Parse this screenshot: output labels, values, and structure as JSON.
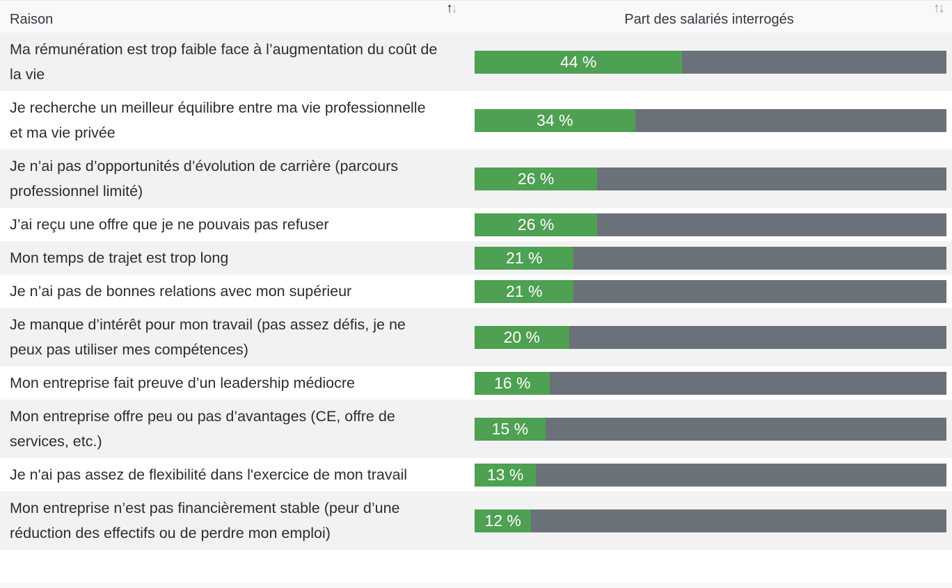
{
  "table": {
    "columns": [
      {
        "label": "Raison",
        "sort_state": "ascending-active"
      },
      {
        "label": "Part des salariés interrogés",
        "sort_state": "inactive"
      }
    ],
    "rows": [
      {
        "label": "Ma rémunération est trop faible face à l’augmentation du coût de la vie",
        "value": 44,
        "display": "44 %"
      },
      {
        "label": "Je recherche un meilleur équilibre entre ma vie professionnelle et ma vie privée",
        "value": 34,
        "display": "34 %"
      },
      {
        "label": "Je n’ai pas d’opportunités d’évolution de carrière (parcours professionnel limité)",
        "value": 26,
        "display": "26 %"
      },
      {
        "label": "J’ai reçu une offre que je ne pouvais pas refuser",
        "value": 26,
        "display": "26 %"
      },
      {
        "label": "Mon temps de trajet est trop long",
        "value": 21,
        "display": "21 %"
      },
      {
        "label": "Je n’ai pas de bonnes relations avec mon supérieur",
        "value": 21,
        "display": "21 %"
      },
      {
        "label": "Je manque d’intérêt pour mon travail (pas assez défis, je ne peux pas utiliser mes compétences)",
        "value": 20,
        "display": "20 %"
      },
      {
        "label": "Mon entreprise fait preuve d’un leadership médiocre",
        "value": 16,
        "display": "16 %"
      },
      {
        "label": "Mon entreprise offre peu ou pas d’avantages (CE, offre de services, etc.)",
        "value": 15,
        "display": "15 %"
      },
      {
        "label": "Je n'ai pas assez de flexibilité dans l'exercice de mon travail",
        "value": 13,
        "display": "13 %"
      },
      {
        "label": "Mon entreprise n’est pas financièrement stable (peur d’une réduction des effectifs ou de perdre mon emploi)",
        "value": 12,
        "display": "12 %"
      }
    ]
  },
  "icons": {
    "sort_asc": "↑",
    "sort_desc": "↓"
  },
  "colors": {
    "bar_fill": "#4ea052",
    "bar_track": "#6b7179",
    "row_stripe": "#f2f2f2",
    "header_bg": "#f8f9fa",
    "bar_label_text": "#ffffff",
    "sort_active": "#222427",
    "sort_inactive": "#9ea4aa"
  },
  "chart_data": {
    "type": "bar",
    "orientation": "horizontal",
    "title": "",
    "xlabel": "Part des salariés interrogés",
    "ylabel": "Raison",
    "xlim": [
      0,
      100
    ],
    "unit": "%",
    "grid": false,
    "legend": "none",
    "categories": [
      "Ma rémunération est trop faible face à l’augmentation du coût de la vie",
      "Je recherche un meilleur équilibre entre ma vie professionnelle et ma vie privée",
      "Je n’ai pas d’opportunités d’évolution de carrière (parcours professionnel limité)",
      "J’ai reçu une offre que je ne pouvais pas refuser",
      "Mon temps de trajet est trop long",
      "Je n’ai pas de bonnes relations avec mon supérieur",
      "Je manque d’intérêt pour mon travail (pas assez défis, je ne peux pas utiliser mes compétences)",
      "Mon entreprise fait preuve d’un leadership médiocre",
      "Mon entreprise offre peu ou pas d’avantages (CE, offre de services, etc.)",
      "Je n'ai pas assez de flexibilité dans l'exercice de mon travail",
      "Mon entreprise n’est pas financièrement stable (peur d’une réduction des effectifs ou de perdre mon emploi)"
    ],
    "values": [
      44,
      34,
      26,
      26,
      21,
      21,
      20,
      16,
      15,
      13,
      12
    ],
    "data_labels": [
      "44 %",
      "34 %",
      "26 %",
      "26 %",
      "21 %",
      "21 %",
      "20 %",
      "16 %",
      "15 %",
      "13 %",
      "12 %"
    ]
  }
}
